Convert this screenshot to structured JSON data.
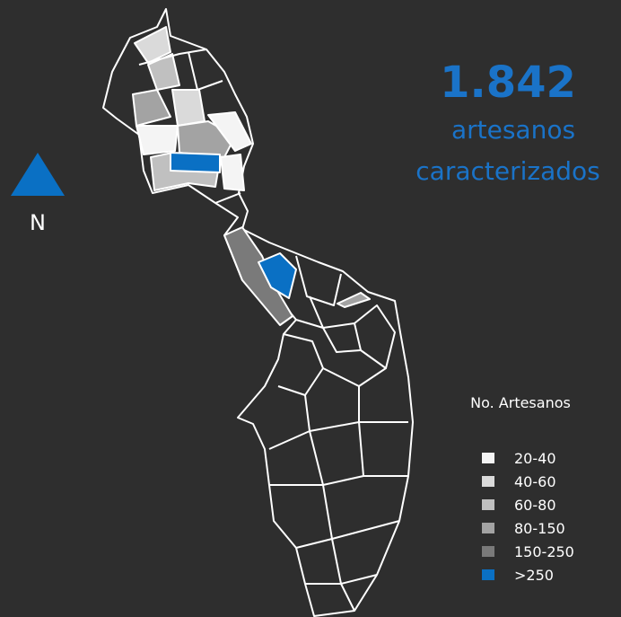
{
  "map": {
    "stat": {
      "value": "1.842",
      "line1": "artesanos",
      "line2": "caracterizados"
    },
    "north": "N",
    "legend": {
      "title": "No. Artesanos",
      "items": [
        {
          "label": "20-40",
          "color": "#f4f4f4"
        },
        {
          "label": "40-60",
          "color": "#dadada"
        },
        {
          "label": "60-80",
          "color": "#c0c0c0"
        },
        {
          "label": "80-150",
          "color": "#a3a3a3"
        },
        {
          "label": "150-250",
          "color": "#7a7a7a"
        },
        {
          "label": ">250",
          "color": "#0a70c4"
        }
      ]
    }
  }
}
